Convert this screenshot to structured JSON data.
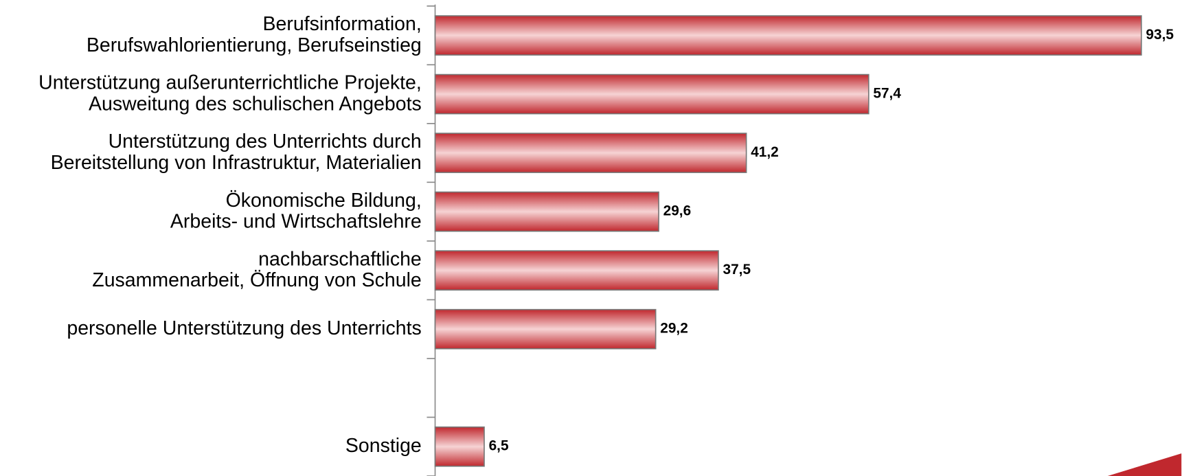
{
  "chart_data": {
    "type": "bar",
    "orientation": "horizontal",
    "categories": [
      "Berufsinformation,\nBerufswahlorientierung, Berufseinstieg",
      "Unterstützung außerunterrichtliche Projekte,\nAusweitung des schulischen Angebots",
      "Unterstützung des Unterrichts durch\nBereitstellung von Infrastruktur, Materialien",
      "Ökonomische Bildung,\nArbeits- und Wirtschaftslehre",
      "nachbarschaftliche\nZusammenarbeit, Öffnung von Schule",
      "personelle Unterstützung des Unterrichts",
      null,
      "Sonstige"
    ],
    "values": [
      93.5,
      57.4,
      41.2,
      29.6,
      37.5,
      29.2,
      null,
      6.5
    ],
    "value_labels": [
      "93,5",
      "57,4",
      "41,2",
      "29,6",
      "37,5",
      "29,2",
      null,
      "6,5"
    ],
    "color": "#c0282e",
    "xlim": [
      0,
      100
    ]
  }
}
